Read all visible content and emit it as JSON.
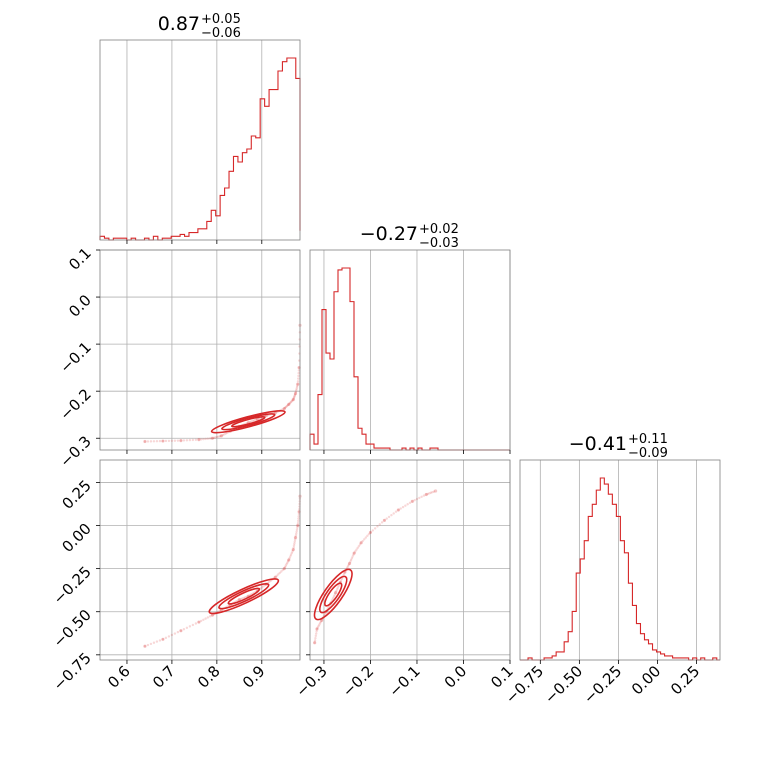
{
  "figure": {
    "type": "corner"
  },
  "colors": {
    "accent": "#d62728",
    "grid": "#b0b0b0",
    "frame": "#808080"
  },
  "chart_data": [
    {
      "type": "histogram",
      "panel": "p0",
      "title": {
        "median": "0.87",
        "plus": "+0.05",
        "minus": "−0.06"
      },
      "xlim": [
        0.54,
        0.985
      ],
      "bin_edges_start": 0.54,
      "bin_width": 0.0099,
      "counts": [
        2,
        1,
        0,
        1,
        1,
        1,
        0,
        1,
        0,
        0,
        1,
        0,
        2,
        0,
        1,
        1,
        2,
        2,
        3,
        2,
        4,
        4,
        6,
        6,
        10,
        16,
        13,
        24,
        28,
        37,
        45,
        42,
        47,
        49,
        56,
        55,
        76,
        72,
        81,
        81,
        91,
        96,
        98,
        98,
        87,
        81,
        80,
        79,
        56,
        48,
        32,
        28,
        16,
        24,
        10,
        5
      ]
    },
    {
      "type": "histogram",
      "panel": "p1",
      "title": {
        "median": "−0.27",
        "plus": "+0.02",
        "minus": "−0.03"
      },
      "xlim": [
        -0.33,
        0.1
      ],
      "bin_edges_start": -0.33,
      "bin_width": 0.0086,
      "counts": [
        8,
        3,
        28,
        71,
        49,
        46,
        80,
        91,
        92,
        92,
        75,
        37,
        11,
        8,
        3,
        3,
        1,
        1,
        1,
        1,
        0,
        0,
        0,
        1,
        0,
        1,
        0,
        1,
        0,
        0,
        1,
        1,
        0,
        0,
        0,
        0,
        0,
        0,
        0,
        0,
        0,
        0,
        0,
        0,
        0,
        0,
        0,
        0,
        0,
        0
      ]
    },
    {
      "type": "histogram",
      "panel": "p2",
      "title": {
        "median": "−0.41",
        "plus": "+0.11",
        "minus": "−0.09"
      },
      "xlim": [
        -0.88,
        0.4
      ],
      "bin_edges_start": -0.88,
      "bin_width": 0.0257,
      "counts": [
        0,
        0,
        1,
        0,
        0,
        0,
        1,
        1,
        2,
        4,
        4,
        9,
        14,
        24,
        43,
        50,
        59,
        71,
        77,
        84,
        90,
        87,
        82,
        77,
        71,
        59,
        53,
        38,
        27,
        18,
        13,
        10,
        8,
        5,
        4,
        3,
        2,
        2,
        1,
        1,
        1,
        1,
        0,
        1,
        0,
        1,
        0,
        0,
        1,
        0
      ]
    },
    {
      "type": "scatter",
      "panel": "p10",
      "xlim": [
        0.54,
        0.985
      ],
      "ylim": [
        -0.325,
        0.1
      ],
      "x": [
        0.64,
        0.68,
        0.72,
        0.76,
        0.79,
        0.81,
        0.83,
        0.85,
        0.87,
        0.89,
        0.91,
        0.93,
        0.95,
        0.96,
        0.97,
        0.975,
        0.98,
        0.983,
        0.985
      ],
      "y": [
        -0.307,
        -0.306,
        -0.305,
        -0.303,
        -0.3,
        -0.295,
        -0.285,
        -0.275,
        -0.267,
        -0.259,
        -0.252,
        -0.246,
        -0.237,
        -0.228,
        -0.218,
        -0.205,
        -0.185,
        -0.15,
        -0.06
      ]
    },
    {
      "type": "scatter",
      "panel": "p20",
      "xlim": [
        0.54,
        0.985
      ],
      "ylim": [
        -0.78,
        0.38
      ],
      "x": [
        0.64,
        0.68,
        0.72,
        0.76,
        0.79,
        0.81,
        0.83,
        0.85,
        0.87,
        0.89,
        0.91,
        0.93,
        0.95,
        0.96,
        0.97,
        0.975,
        0.98,
        0.983,
        0.985
      ],
      "y": [
        -0.7,
        -0.66,
        -0.61,
        -0.56,
        -0.52,
        -0.49,
        -0.46,
        -0.43,
        -0.41,
        -0.38,
        -0.34,
        -0.3,
        -0.25,
        -0.2,
        -0.14,
        -0.07,
        0.0,
        0.08,
        0.17
      ]
    },
    {
      "type": "scatter",
      "panel": "p21",
      "xlim": [
        -0.33,
        0.1
      ],
      "ylim": [
        -0.78,
        0.38
      ],
      "x": [
        -0.32,
        -0.315,
        -0.305,
        -0.295,
        -0.285,
        -0.275,
        -0.265,
        -0.255,
        -0.245,
        -0.235,
        -0.22,
        -0.2,
        -0.17,
        -0.14,
        -0.11,
        -0.08,
        -0.06
      ],
      "y": [
        -0.68,
        -0.6,
        -0.55,
        -0.5,
        -0.45,
        -0.39,
        -0.33,
        -0.27,
        -0.22,
        -0.16,
        -0.1,
        -0.04,
        0.03,
        0.09,
        0.14,
        0.18,
        0.2
      ]
    }
  ],
  "axes": {
    "p0_x": [
      0.6,
      0.7,
      0.8,
      0.9
    ],
    "p1_x": [
      -0.3,
      -0.2,
      -0.1,
      0.0,
      0.1
    ],
    "p2_x": [
      -0.75,
      -0.5,
      -0.25,
      0.0,
      0.25
    ],
    "row1_y": [
      0.1,
      0.0,
      -0.1,
      -0.2,
      -0.3
    ],
    "row2_y": [
      0.25,
      0.0,
      -0.25,
      -0.5,
      -0.75
    ]
  },
  "labels": {
    "x0": [
      "0.6",
      "0.7",
      "0.8",
      "0.9"
    ],
    "x1": [
      "−0.3",
      "−0.2",
      "−0.1",
      "0.0",
      "0.1"
    ],
    "x2": [
      "−0.75",
      "−0.50",
      "−0.25",
      "0.00",
      "0.25"
    ],
    "y1": [
      "0.1",
      "0.0",
      "−0.1",
      "−0.2",
      "−0.3"
    ],
    "y2": [
      "0.25",
      "0.00",
      "−0.25",
      "−0.50",
      "−0.75"
    ]
  }
}
